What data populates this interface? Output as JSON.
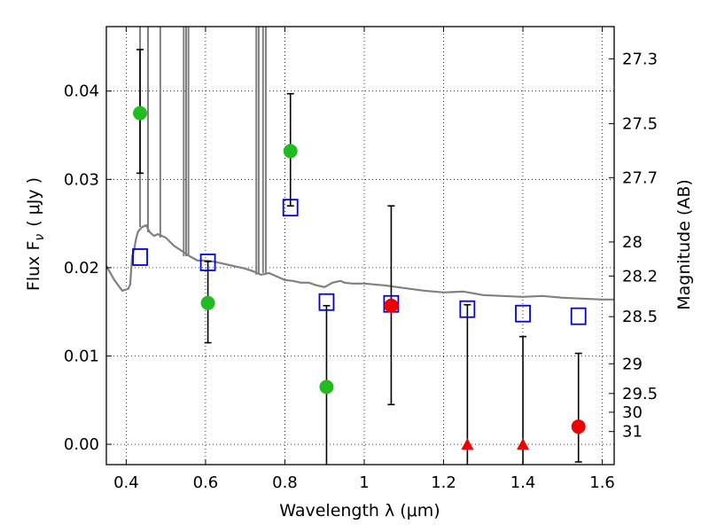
{
  "chart_data": {
    "type": "scatter",
    "xlabel": "Wavelength  λ (μm)",
    "ylabel": "Flux  F",
    "ylabel_sub": "ν",
    "ylabel_unit": "( μJy )",
    "ylabel_right": "Magnitude (AB)",
    "xlim": [
      0.35,
      1.63
    ],
    "ylim": [
      -0.0023,
      0.0473
    ],
    "grid": true,
    "x_ticks": [
      0.4,
      0.6,
      0.8,
      1.0,
      1.2,
      1.4,
      1.6
    ],
    "x_tick_labels": [
      "0.4",
      "0.6",
      "0.8",
      "1",
      "1.2",
      "1.4",
      "1.6"
    ],
    "y_ticks": [
      0.0,
      0.01,
      0.02,
      0.03,
      0.04
    ],
    "y_tick_labels": [
      "0.00",
      "0.01",
      "0.02",
      "0.03",
      "0.04"
    ],
    "mag_ticks": [
      27.3,
      27.5,
      27.7,
      28,
      28.2,
      28.5,
      29,
      29.5,
      30,
      31
    ],
    "mag_tick_labels": [
      "27.3",
      "27.5",
      "27.7",
      "28",
      "28.2",
      "28.5",
      "29",
      "29.5",
      "30",
      "31"
    ],
    "colors": {
      "detection": "#22bb22",
      "low_significance": "#ee0000",
      "model_photometry": "#0000dd",
      "spectrum": "#808080",
      "error_bar": "#000000"
    },
    "series": [
      {
        "kind": "spectrum",
        "x": [
          0.35,
          0.37,
          0.39,
          0.405,
          0.41,
          0.415,
          0.42,
          0.425,
          0.43,
          0.44,
          0.45,
          0.46,
          0.47,
          0.48,
          0.5,
          0.52,
          0.54,
          0.56,
          0.58,
          0.6,
          0.62,
          0.65,
          0.68,
          0.7,
          0.72,
          0.74,
          0.76,
          0.78,
          0.8,
          0.82,
          0.84,
          0.86,
          0.88,
          0.9,
          0.92,
          0.94,
          0.95,
          0.97,
          1.0,
          1.05,
          1.1,
          1.15,
          1.2,
          1.25,
          1.3,
          1.35,
          1.4,
          1.45,
          1.5,
          1.55,
          1.6,
          1.63
        ],
        "y": [
          0.0202,
          0.0186,
          0.0174,
          0.0176,
          0.0181,
          0.0213,
          0.022,
          0.0233,
          0.0241,
          0.0246,
          0.0248,
          0.024,
          0.0236,
          0.0238,
          0.0234,
          0.0225,
          0.0219,
          0.0213,
          0.0208,
          0.0208,
          0.0207,
          0.0204,
          0.0201,
          0.0199,
          0.0196,
          0.0192,
          0.0194,
          0.019,
          0.0186,
          0.0185,
          0.0183,
          0.0183,
          0.018,
          0.0178,
          0.0183,
          0.0185,
          0.0183,
          0.0182,
          0.0182,
          0.018,
          0.0177,
          0.0174,
          0.0172,
          0.0173,
          0.0169,
          0.0168,
          0.0167,
          0.0168,
          0.0166,
          0.0165,
          0.0164,
          0.0164
        ]
      },
      {
        "kind": "model_photometry",
        "x": [
          0.435,
          0.606,
          0.814,
          0.905,
          1.068,
          1.26,
          1.4,
          1.54
        ],
        "y": [
          0.0212,
          0.0206,
          0.0268,
          0.0161,
          0.0159,
          0.0153,
          0.0148,
          0.0145
        ]
      },
      {
        "kind": "detection",
        "x": [
          0.435,
          0.606,
          0.814,
          0.905
        ],
        "y": [
          0.0375,
          0.016,
          0.0332,
          0.0065
        ],
        "yerr_low": [
          0.0068,
          0.0045,
          0.0062,
          0.009
        ],
        "yerr_high": [
          0.0072,
          0.0047,
          0.0065,
          0.0092
        ]
      },
      {
        "kind": "low_significance",
        "x": [
          1.068,
          1.54
        ],
        "y": [
          0.0157,
          0.002
        ],
        "yerr_low": [
          0.0112,
          0.004
        ],
        "yerr_high": [
          0.0113,
          0.0083
        ]
      },
      {
        "kind": "upper_limit",
        "x": [
          1.26,
          1.4
        ],
        "y": [
          0.0,
          0.0
        ],
        "yerr_high": [
          0.0158,
          0.0122
        ],
        "yerr_low": [
          0.004,
          0.004
        ]
      }
    ]
  }
}
